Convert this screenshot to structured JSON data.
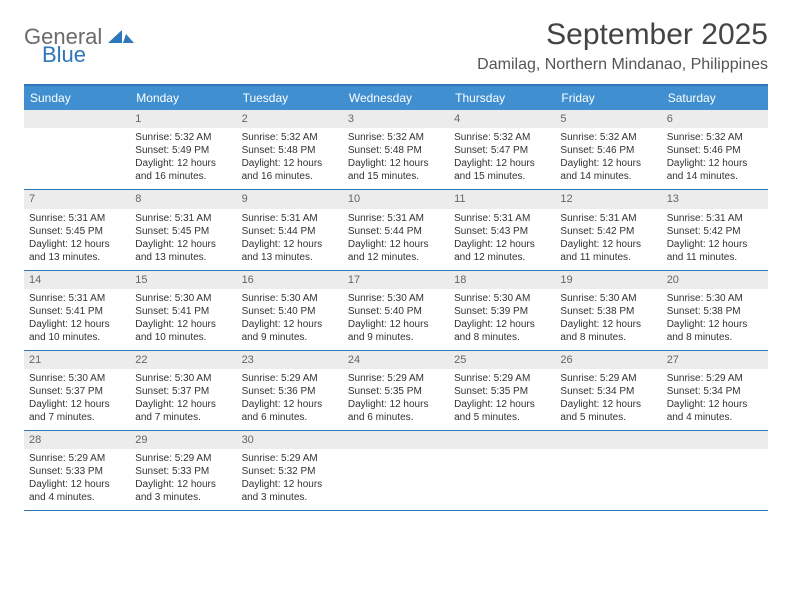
{
  "brand": {
    "part1": "General",
    "part2": "Blue"
  },
  "title": "September 2025",
  "location": "Damilag, Northern Mindanao, Philippines",
  "colors": {
    "header_bar": "#3f8fd1",
    "border": "#2f77bb",
    "daynum_bg": "#ececec",
    "text": "#333333"
  },
  "dow": [
    "Sunday",
    "Monday",
    "Tuesday",
    "Wednesday",
    "Thursday",
    "Friday",
    "Saturday"
  ],
  "weeks": [
    [
      {
        "n": "",
        "sr": "",
        "ss": "",
        "dl1": "",
        "dl2": ""
      },
      {
        "n": "1",
        "sr": "Sunrise: 5:32 AM",
        "ss": "Sunset: 5:49 PM",
        "dl1": "Daylight: 12 hours",
        "dl2": "and 16 minutes."
      },
      {
        "n": "2",
        "sr": "Sunrise: 5:32 AM",
        "ss": "Sunset: 5:48 PM",
        "dl1": "Daylight: 12 hours",
        "dl2": "and 16 minutes."
      },
      {
        "n": "3",
        "sr": "Sunrise: 5:32 AM",
        "ss": "Sunset: 5:48 PM",
        "dl1": "Daylight: 12 hours",
        "dl2": "and 15 minutes."
      },
      {
        "n": "4",
        "sr": "Sunrise: 5:32 AM",
        "ss": "Sunset: 5:47 PM",
        "dl1": "Daylight: 12 hours",
        "dl2": "and 15 minutes."
      },
      {
        "n": "5",
        "sr": "Sunrise: 5:32 AM",
        "ss": "Sunset: 5:46 PM",
        "dl1": "Daylight: 12 hours",
        "dl2": "and 14 minutes."
      },
      {
        "n": "6",
        "sr": "Sunrise: 5:32 AM",
        "ss": "Sunset: 5:46 PM",
        "dl1": "Daylight: 12 hours",
        "dl2": "and 14 minutes."
      }
    ],
    [
      {
        "n": "7",
        "sr": "Sunrise: 5:31 AM",
        "ss": "Sunset: 5:45 PM",
        "dl1": "Daylight: 12 hours",
        "dl2": "and 13 minutes."
      },
      {
        "n": "8",
        "sr": "Sunrise: 5:31 AM",
        "ss": "Sunset: 5:45 PM",
        "dl1": "Daylight: 12 hours",
        "dl2": "and 13 minutes."
      },
      {
        "n": "9",
        "sr": "Sunrise: 5:31 AM",
        "ss": "Sunset: 5:44 PM",
        "dl1": "Daylight: 12 hours",
        "dl2": "and 13 minutes."
      },
      {
        "n": "10",
        "sr": "Sunrise: 5:31 AM",
        "ss": "Sunset: 5:44 PM",
        "dl1": "Daylight: 12 hours",
        "dl2": "and 12 minutes."
      },
      {
        "n": "11",
        "sr": "Sunrise: 5:31 AM",
        "ss": "Sunset: 5:43 PM",
        "dl1": "Daylight: 12 hours",
        "dl2": "and 12 minutes."
      },
      {
        "n": "12",
        "sr": "Sunrise: 5:31 AM",
        "ss": "Sunset: 5:42 PM",
        "dl1": "Daylight: 12 hours",
        "dl2": "and 11 minutes."
      },
      {
        "n": "13",
        "sr": "Sunrise: 5:31 AM",
        "ss": "Sunset: 5:42 PM",
        "dl1": "Daylight: 12 hours",
        "dl2": "and 11 minutes."
      }
    ],
    [
      {
        "n": "14",
        "sr": "Sunrise: 5:31 AM",
        "ss": "Sunset: 5:41 PM",
        "dl1": "Daylight: 12 hours",
        "dl2": "and 10 minutes."
      },
      {
        "n": "15",
        "sr": "Sunrise: 5:30 AM",
        "ss": "Sunset: 5:41 PM",
        "dl1": "Daylight: 12 hours",
        "dl2": "and 10 minutes."
      },
      {
        "n": "16",
        "sr": "Sunrise: 5:30 AM",
        "ss": "Sunset: 5:40 PM",
        "dl1": "Daylight: 12 hours",
        "dl2": "and 9 minutes."
      },
      {
        "n": "17",
        "sr": "Sunrise: 5:30 AM",
        "ss": "Sunset: 5:40 PM",
        "dl1": "Daylight: 12 hours",
        "dl2": "and 9 minutes."
      },
      {
        "n": "18",
        "sr": "Sunrise: 5:30 AM",
        "ss": "Sunset: 5:39 PM",
        "dl1": "Daylight: 12 hours",
        "dl2": "and 8 minutes."
      },
      {
        "n": "19",
        "sr": "Sunrise: 5:30 AM",
        "ss": "Sunset: 5:38 PM",
        "dl1": "Daylight: 12 hours",
        "dl2": "and 8 minutes."
      },
      {
        "n": "20",
        "sr": "Sunrise: 5:30 AM",
        "ss": "Sunset: 5:38 PM",
        "dl1": "Daylight: 12 hours",
        "dl2": "and 8 minutes."
      }
    ],
    [
      {
        "n": "21",
        "sr": "Sunrise: 5:30 AM",
        "ss": "Sunset: 5:37 PM",
        "dl1": "Daylight: 12 hours",
        "dl2": "and 7 minutes."
      },
      {
        "n": "22",
        "sr": "Sunrise: 5:30 AM",
        "ss": "Sunset: 5:37 PM",
        "dl1": "Daylight: 12 hours",
        "dl2": "and 7 minutes."
      },
      {
        "n": "23",
        "sr": "Sunrise: 5:29 AM",
        "ss": "Sunset: 5:36 PM",
        "dl1": "Daylight: 12 hours",
        "dl2": "and 6 minutes."
      },
      {
        "n": "24",
        "sr": "Sunrise: 5:29 AM",
        "ss": "Sunset: 5:35 PM",
        "dl1": "Daylight: 12 hours",
        "dl2": "and 6 minutes."
      },
      {
        "n": "25",
        "sr": "Sunrise: 5:29 AM",
        "ss": "Sunset: 5:35 PM",
        "dl1": "Daylight: 12 hours",
        "dl2": "and 5 minutes."
      },
      {
        "n": "26",
        "sr": "Sunrise: 5:29 AM",
        "ss": "Sunset: 5:34 PM",
        "dl1": "Daylight: 12 hours",
        "dl2": "and 5 minutes."
      },
      {
        "n": "27",
        "sr": "Sunrise: 5:29 AM",
        "ss": "Sunset: 5:34 PM",
        "dl1": "Daylight: 12 hours",
        "dl2": "and 4 minutes."
      }
    ],
    [
      {
        "n": "28",
        "sr": "Sunrise: 5:29 AM",
        "ss": "Sunset: 5:33 PM",
        "dl1": "Daylight: 12 hours",
        "dl2": "and 4 minutes."
      },
      {
        "n": "29",
        "sr": "Sunrise: 5:29 AM",
        "ss": "Sunset: 5:33 PM",
        "dl1": "Daylight: 12 hours",
        "dl2": "and 3 minutes."
      },
      {
        "n": "30",
        "sr": "Sunrise: 5:29 AM",
        "ss": "Sunset: 5:32 PM",
        "dl1": "Daylight: 12 hours",
        "dl2": "and 3 minutes."
      },
      {
        "n": "",
        "sr": "",
        "ss": "",
        "dl1": "",
        "dl2": ""
      },
      {
        "n": "",
        "sr": "",
        "ss": "",
        "dl1": "",
        "dl2": ""
      },
      {
        "n": "",
        "sr": "",
        "ss": "",
        "dl1": "",
        "dl2": ""
      },
      {
        "n": "",
        "sr": "",
        "ss": "",
        "dl1": "",
        "dl2": ""
      }
    ]
  ]
}
